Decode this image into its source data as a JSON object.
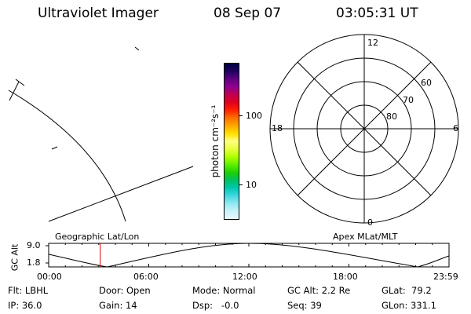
{
  "header": {
    "title": "Ultraviolet Imager",
    "date": "08 Sep 07",
    "time": "03:05:31 UT"
  },
  "colorbar": {
    "label": "photon cm⁻²s⁻¹",
    "ticks": [
      "100",
      "10"
    ],
    "colors": [
      "#000040",
      "#200060",
      "#600080",
      "#900090",
      "#c00050",
      "#e00020",
      "#ff2000",
      "#ff7000",
      "#ffa800",
      "#ffe000",
      "#ffff80",
      "#e8ff40",
      "#b0ff00",
      "#60f000",
      "#20d000",
      "#00c060",
      "#00c8b0",
      "#40d8e0",
      "#90e8f0",
      "#c8f4f8",
      "#e8f8fc"
    ]
  },
  "polar": {
    "mlt_labels": {
      "top": "12",
      "left": "18",
      "right": "6",
      "bottom": "0"
    },
    "lat_labels": [
      "60",
      "70",
      "80"
    ]
  },
  "alt_panel": {
    "ylabel": "GC Alt",
    "yticks": [
      "9.0",
      "1.8"
    ],
    "left_title": "Geographic Lat/Lon",
    "right_title": "Apex MLat/MLT",
    "xticks": [
      "00:00",
      "06:00",
      "12:00",
      "18:00",
      "23:59"
    ],
    "marker_hour": 3.09
  },
  "status": {
    "flt": "Flt: LBHL",
    "ip": "IP: 36.0",
    "door": "Door: Open",
    "gain": "Gain: 14",
    "mode": "Mode: Normal",
    "dsp": "Dsp:   -0.0",
    "gcalt": "GC Alt: 2.2 Re",
    "seq": "Seq: 39",
    "glat": "GLat:  79.2",
    "glon": "GLon: 331.1"
  }
}
